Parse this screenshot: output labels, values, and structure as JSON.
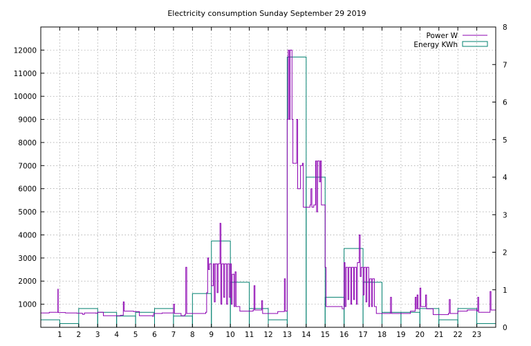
{
  "chart_data": {
    "type": "bar+line",
    "title": "Electricity consumption Sunday September 29 2019",
    "xlabel": "",
    "ylabel_left": "",
    "ylabel_right": "",
    "x_ticks": [
      1,
      2,
      3,
      4,
      5,
      6,
      7,
      8,
      9,
      10,
      11,
      12,
      13,
      14,
      15,
      16,
      17,
      18,
      19,
      20,
      21,
      22,
      23
    ],
    "xlim": [
      0,
      24
    ],
    "y_left_ticks": [
      1000,
      2000,
      3000,
      4000,
      5000,
      6000,
      7000,
      8000,
      9000,
      10000,
      11000,
      12000
    ],
    "ylim_left": [
      0,
      13000
    ],
    "y_right_ticks": [
      0,
      1,
      2,
      3,
      4,
      5,
      6,
      7,
      8
    ],
    "ylim_right": [
      0,
      8
    ],
    "grid": true,
    "legend_position": "top-right",
    "series": [
      {
        "name": "Power W",
        "type": "line",
        "color": "#8b00b0",
        "axis": "left",
        "points": [
          [
            0.0,
            620
          ],
          [
            0.4,
            620
          ],
          [
            0.45,
            650
          ],
          [
            0.85,
            650
          ],
          [
            0.9,
            1650
          ],
          [
            0.92,
            640
          ],
          [
            1.3,
            620
          ],
          [
            1.9,
            610
          ],
          [
            2.2,
            560
          ],
          [
            2.3,
            620
          ],
          [
            2.9,
            610
          ],
          [
            3.0,
            650
          ],
          [
            3.3,
            500
          ],
          [
            3.9,
            500
          ],
          [
            4.2,
            520
          ],
          [
            4.35,
            1100
          ],
          [
            4.4,
            700
          ],
          [
            4.9,
            680
          ],
          [
            5.2,
            500
          ],
          [
            5.9,
            480
          ],
          [
            5.95,
            600
          ],
          [
            6.4,
            620
          ],
          [
            6.9,
            620
          ],
          [
            7.0,
            1000
          ],
          [
            7.05,
            600
          ],
          [
            7.4,
            500
          ],
          [
            7.6,
            560
          ],
          [
            7.65,
            2600
          ],
          [
            7.7,
            600
          ],
          [
            8.4,
            600
          ],
          [
            8.7,
            650
          ],
          [
            8.75,
            1500
          ],
          [
            8.8,
            3000
          ],
          [
            8.85,
            2500
          ],
          [
            8.9,
            2750
          ],
          [
            9.0,
            1800
          ],
          [
            9.1,
            2750
          ],
          [
            9.15,
            1100
          ],
          [
            9.2,
            2750
          ],
          [
            9.3,
            1500
          ],
          [
            9.35,
            2750
          ],
          [
            9.45,
            4500
          ],
          [
            9.5,
            1000
          ],
          [
            9.55,
            2750
          ],
          [
            9.65,
            1300
          ],
          [
            9.7,
            2750
          ],
          [
            9.8,
            1000
          ],
          [
            9.85,
            2750
          ],
          [
            9.95,
            1300
          ],
          [
            10.0,
            2750
          ],
          [
            10.05,
            1000
          ],
          [
            10.1,
            2300
          ],
          [
            10.2,
            900
          ],
          [
            10.25,
            2400
          ],
          [
            10.3,
            900
          ],
          [
            10.5,
            700
          ],
          [
            11.0,
            700
          ],
          [
            11.2,
            750
          ],
          [
            11.25,
            1800
          ],
          [
            11.3,
            750
          ],
          [
            11.6,
            750
          ],
          [
            11.65,
            1150
          ],
          [
            11.7,
            600
          ],
          [
            12.3,
            600
          ],
          [
            12.5,
            680
          ],
          [
            12.8,
            680
          ],
          [
            12.85,
            2100
          ],
          [
            12.9,
            700
          ],
          [
            13.0,
            9000
          ],
          [
            13.05,
            12000
          ],
          [
            13.1,
            9000
          ],
          [
            13.15,
            12000
          ],
          [
            13.25,
            9000
          ],
          [
            13.3,
            7100
          ],
          [
            13.4,
            7100
          ],
          [
            13.5,
            9000
          ],
          [
            13.55,
            6000
          ],
          [
            13.7,
            7000
          ],
          [
            13.8,
            7100
          ],
          [
            13.85,
            5200
          ],
          [
            14.1,
            5200
          ],
          [
            14.2,
            5300
          ],
          [
            14.25,
            6000
          ],
          [
            14.3,
            5200
          ],
          [
            14.4,
            5300
          ],
          [
            14.5,
            7200
          ],
          [
            14.55,
            5000
          ],
          [
            14.6,
            7200
          ],
          [
            14.7,
            6300
          ],
          [
            14.75,
            7200
          ],
          [
            14.8,
            5300
          ],
          [
            14.9,
            5300
          ],
          [
            15.0,
            2600
          ],
          [
            15.05,
            900
          ],
          [
            15.2,
            900
          ],
          [
            15.5,
            900
          ],
          [
            15.9,
            800
          ],
          [
            16.0,
            2800
          ],
          [
            16.05,
            900
          ],
          [
            16.1,
            2600
          ],
          [
            16.2,
            1200
          ],
          [
            16.25,
            2600
          ],
          [
            16.35,
            1000
          ],
          [
            16.4,
            2600
          ],
          [
            16.5,
            1200
          ],
          [
            16.55,
            2600
          ],
          [
            16.65,
            1000
          ],
          [
            16.7,
            2800
          ],
          [
            16.8,
            4000
          ],
          [
            16.85,
            2200
          ],
          [
            16.9,
            2600
          ],
          [
            17.0,
            1400
          ],
          [
            17.05,
            2600
          ],
          [
            17.15,
            1100
          ],
          [
            17.2,
            2600
          ],
          [
            17.3,
            900
          ],
          [
            17.35,
            2100
          ],
          [
            17.45,
            900
          ],
          [
            17.5,
            2100
          ],
          [
            17.6,
            900
          ],
          [
            17.7,
            600
          ],
          [
            18.0,
            600
          ],
          [
            18.4,
            600
          ],
          [
            18.45,
            1300
          ],
          [
            18.5,
            600
          ],
          [
            19.0,
            600
          ],
          [
            19.4,
            600
          ],
          [
            19.5,
            700
          ],
          [
            19.7,
            700
          ],
          [
            19.75,
            1300
          ],
          [
            19.8,
            800
          ],
          [
            19.85,
            1400
          ],
          [
            19.9,
            800
          ],
          [
            20.0,
            1700
          ],
          [
            20.05,
            900
          ],
          [
            20.2,
            900
          ],
          [
            20.3,
            1400
          ],
          [
            20.35,
            800
          ],
          [
            20.6,
            800
          ],
          [
            20.7,
            550
          ],
          [
            21.2,
            550
          ],
          [
            21.5,
            600
          ],
          [
            21.55,
            1200
          ],
          [
            21.6,
            600
          ],
          [
            22.0,
            700
          ],
          [
            22.5,
            750
          ],
          [
            23.0,
            700
          ],
          [
            23.05,
            1300
          ],
          [
            23.1,
            650
          ],
          [
            23.5,
            650
          ],
          [
            23.7,
            1550
          ],
          [
            23.75,
            750
          ],
          [
            24.0,
            750
          ]
        ]
      },
      {
        "name": "Energy KWh",
        "type": "bar",
        "color": "#00806f",
        "axis": "right",
        "bars": [
          {
            "x": 0,
            "value": 0.2
          },
          {
            "x": 1,
            "value": 0.1
          },
          {
            "x": 2,
            "value": 0.5
          },
          {
            "x": 3,
            "value": 0.4
          },
          {
            "x": 4,
            "value": 0.3
          },
          {
            "x": 5,
            "value": 0.4
          },
          {
            "x": 6,
            "value": 0.5
          },
          {
            "x": 7,
            "value": 0.3
          },
          {
            "x": 8,
            "value": 0.9
          },
          {
            "x": 9,
            "value": 2.3
          },
          {
            "x": 10,
            "value": 1.2
          },
          {
            "x": 11,
            "value": 0.5
          },
          {
            "x": 12,
            "value": 0.2
          },
          {
            "x": 13,
            "value": 7.2
          },
          {
            "x": 14,
            "value": 4.0
          },
          {
            "x": 15,
            "value": 0.8
          },
          {
            "x": 16,
            "value": 2.1
          },
          {
            "x": 17,
            "value": 1.2
          },
          {
            "x": 18,
            "value": 0.4
          },
          {
            "x": 19,
            "value": 0.4
          },
          {
            "x": 20,
            "value": 0.5
          },
          {
            "x": 21,
            "value": 0.2
          },
          {
            "x": 22,
            "value": 0.5
          },
          {
            "x": 23,
            "value": 0.1
          }
        ]
      }
    ]
  }
}
